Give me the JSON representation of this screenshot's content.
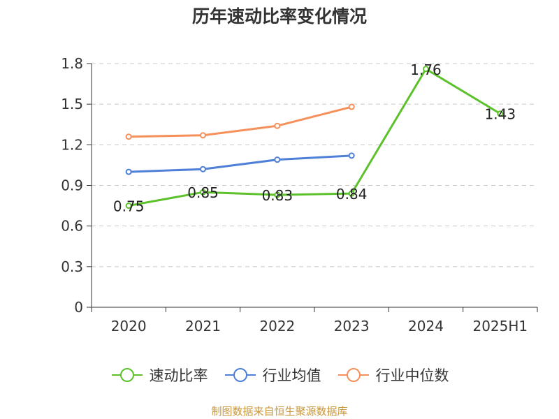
{
  "chart_data": {
    "type": "line",
    "title": "历年速动比率变化情况",
    "categories": [
      "2020",
      "2021",
      "2022",
      "2023",
      "2024",
      "2025H1"
    ],
    "ylim": [
      0,
      1.8
    ],
    "yticks": [
      "0",
      "0.3",
      "0.6",
      "0.9",
      "1.2",
      "1.5",
      "1.8"
    ],
    "grid": true,
    "legend_position": "bottom",
    "series": [
      {
        "name": "速动比率",
        "color": "#5cc12b",
        "values": [
          0.75,
          0.85,
          0.83,
          0.84,
          1.76,
          1.43
        ],
        "labels": [
          "0.75",
          "0.85",
          "0.83",
          "0.84",
          "1.76",
          "1.43"
        ]
      },
      {
        "name": "行业均值",
        "color": "#4f80d8",
        "values": [
          1.0,
          1.02,
          1.09,
          1.12,
          null,
          null
        ]
      },
      {
        "name": "行业中位数",
        "color": "#f6905a",
        "values": [
          1.26,
          1.27,
          1.34,
          1.48,
          null,
          null
        ]
      }
    ]
  },
  "source_note": "制图数据来自恒生聚源数据库"
}
